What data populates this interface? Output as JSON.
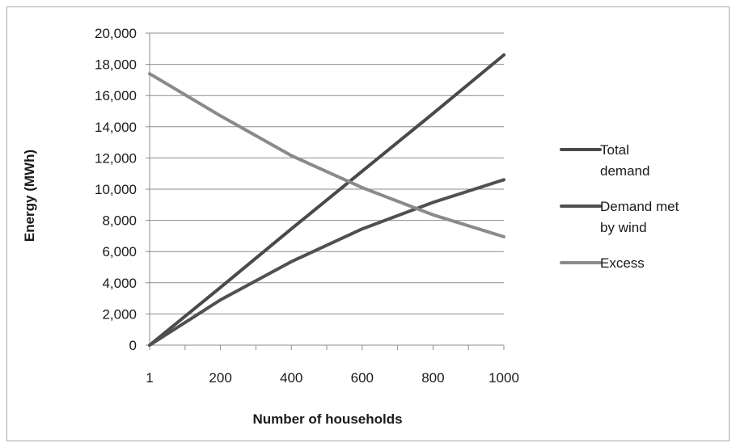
{
  "chart_data": {
    "type": "line",
    "x": [
      "1",
      "200",
      "400",
      "600",
      "800",
      "1000"
    ],
    "xlabel": "Number of households",
    "ylabel": "Energy (MWh)",
    "ylim": [
      0,
      20000
    ],
    "yticks": [
      "0",
      "2,000",
      "4,000",
      "6,000",
      "8,000",
      "10,000",
      "12,000",
      "14,000",
      "16,000",
      "18,000",
      "20,000"
    ],
    "grid": true,
    "legend_position": "right",
    "series": [
      {
        "name": "Total demand",
        "color": "#4a4a4a",
        "values": [
          0,
          3700,
          7450,
          11150,
          14850,
          18600
        ]
      },
      {
        "name": "Demand met by wind",
        "color": "#505050",
        "values": [
          0,
          2900,
          5350,
          7450,
          9150,
          10600
        ]
      },
      {
        "name": "Excess",
        "color": "#8a8a8a",
        "values": [
          17400,
          14700,
          12150,
          10100,
          8350,
          6950
        ]
      }
    ],
    "legend_entries": [
      {
        "lines": [
          "Total",
          "demand"
        ],
        "color": "#4a4a4a"
      },
      {
        "lines": [
          "Demand met",
          "by wind"
        ],
        "color": "#505050"
      },
      {
        "lines": [
          "Excess"
        ],
        "color": "#8a8a8a"
      }
    ]
  }
}
